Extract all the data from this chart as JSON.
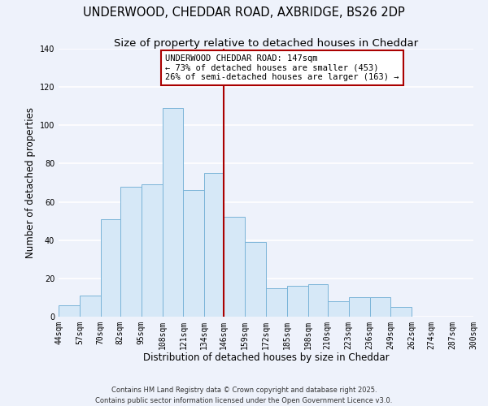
{
  "title": "UNDERWOOD, CHEDDAR ROAD, AXBRIDGE, BS26 2DP",
  "subtitle": "Size of property relative to detached houses in Cheddar",
  "xlabel": "Distribution of detached houses by size in Cheddar",
  "ylabel": "Number of detached properties",
  "bins": [
    44,
    57,
    70,
    82,
    95,
    108,
    121,
    134,
    146,
    159,
    172,
    185,
    198,
    210,
    223,
    236,
    249,
    262,
    274,
    287,
    300
  ],
  "bin_labels": [
    "44sqm",
    "57sqm",
    "70sqm",
    "82sqm",
    "95sqm",
    "108sqm",
    "121sqm",
    "134sqm",
    "146sqm",
    "159sqm",
    "172sqm",
    "185sqm",
    "198sqm",
    "210sqm",
    "223sqm",
    "236sqm",
    "249sqm",
    "262sqm",
    "274sqm",
    "287sqm",
    "300sqm"
  ],
  "counts": [
    6,
    11,
    51,
    68,
    69,
    109,
    66,
    75,
    52,
    39,
    15,
    16,
    17,
    8,
    10,
    10,
    5,
    0,
    0,
    0
  ],
  "bar_color": "#d6e8f7",
  "bar_edge_color": "#7ab4d8",
  "vline_color": "#aa0000",
  "vline_x": 146,
  "annotation_text_line1": "UNDERWOOD CHEDDAR ROAD: 147sqm",
  "annotation_text_line2": "← 73% of detached houses are smaller (453)",
  "annotation_text_line3": "26% of semi-detached houses are larger (163) →",
  "annotation_box_color": "#ffffff",
  "annotation_box_edge_color": "#aa0000",
  "footer_text": "Contains HM Land Registry data © Crown copyright and database right 2025.\nContains public sector information licensed under the Open Government Licence v3.0.",
  "ylim": [
    0,
    140
  ],
  "yticks": [
    0,
    20,
    40,
    60,
    80,
    100,
    120,
    140
  ],
  "background_color": "#eef2fb",
  "grid_color": "#ffffff",
  "title_fontsize": 10.5,
  "subtitle_fontsize": 9.5,
  "axis_label_fontsize": 8.5,
  "tick_fontsize": 7,
  "annotation_fontsize": 7.5,
  "footer_fontsize": 6.0
}
